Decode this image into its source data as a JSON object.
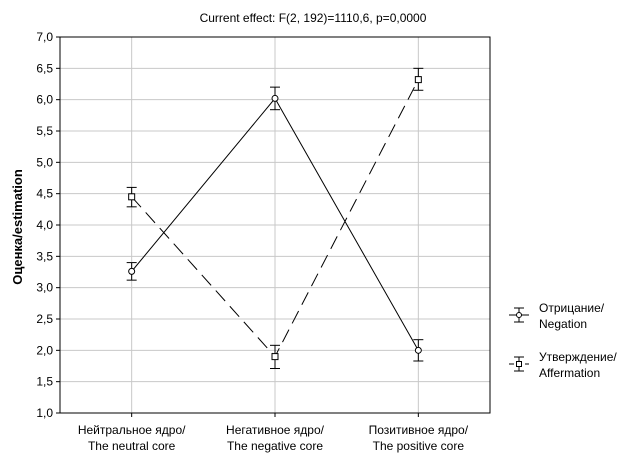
{
  "chart_data": {
    "type": "line",
    "title": "Current effect: F(2, 192)=1110,6, p=0,0000",
    "xlabel": "",
    "ylabel": "Оценка/estimation",
    "ylim": [
      1.0,
      7.0
    ],
    "yticks": [
      "1,0",
      "1,5",
      "2,0",
      "2,5",
      "3,0",
      "3,5",
      "4,0",
      "4,5",
      "5,0",
      "5,5",
      "6,0",
      "6,5",
      "7,0"
    ],
    "grid": true,
    "legend_position": "right",
    "categories": [
      [
        "Нейтральное ядро/",
        "The neutral core"
      ],
      [
        "Негативное ядро/",
        "The negative core"
      ],
      [
        "Позитивное ядро/",
        "The positive core"
      ]
    ],
    "series": [
      {
        "name": [
          "Отрицание/",
          "Negation"
        ],
        "marker": "circle",
        "line": "solid",
        "values": [
          3.26,
          6.02,
          2.0
        ],
        "err_low": [
          3.12,
          5.84,
          1.83
        ],
        "err_high": [
          3.4,
          6.2,
          2.17
        ]
      },
      {
        "name": [
          "Утверждение/",
          "Affermation"
        ],
        "marker": "square",
        "line": "dashed",
        "values": [
          4.45,
          1.9,
          6.32
        ],
        "err_low": [
          4.29,
          1.71,
          6.15
        ],
        "err_high": [
          4.6,
          2.08,
          6.5
        ]
      }
    ]
  }
}
